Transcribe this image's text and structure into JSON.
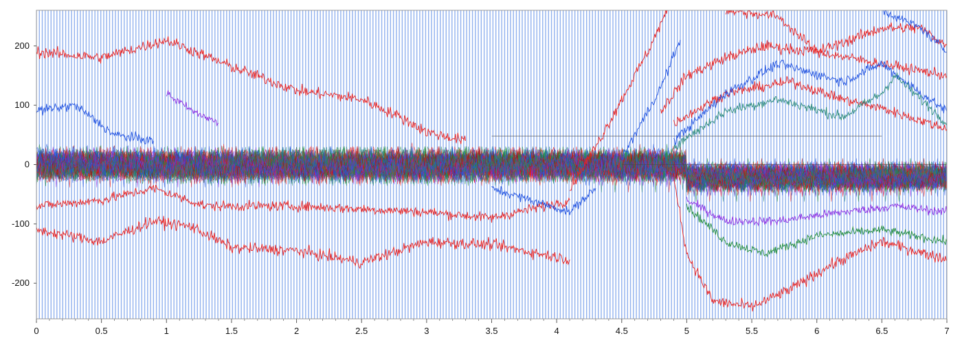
{
  "chart_data": {
    "type": "line",
    "title": "",
    "xlabel": "",
    "ylabel": "",
    "xlim": [
      0,
      7
    ],
    "ylim": [
      -260,
      260
    ],
    "x_ticks": [
      0,
      0.5,
      1,
      1.5,
      2,
      2.5,
      3,
      3.5,
      4,
      4.5,
      5,
      5.5,
      6,
      6.5,
      7
    ],
    "x_tick_labels": [
      "0",
      "0.5",
      "1",
      "1.5",
      "2",
      "2.5",
      "3",
      "3.5",
      "4",
      "4.5",
      "5",
      "5.5",
      "6",
      "6.5",
      "7"
    ],
    "y_ticks": [
      -200,
      -100,
      0,
      100,
      200
    ],
    "y_tick_labels": [
      "-200",
      "-100",
      "0",
      "100",
      "200"
    ],
    "background_stripes": {
      "color": "#8fb0ee",
      "spacing_x": 0.0225
    },
    "colors": {
      "red": "#e82020",
      "blue": "#1d4fe0",
      "green": "#1e8a3a",
      "purple": "#8a2be2",
      "teal": "#2a8a7a",
      "dark_red": "#9e1010"
    },
    "noise_band": {
      "center": 0,
      "half_width": 45,
      "note_free": true
    },
    "series": [
      {
        "color": "red",
        "noise": 9,
        "points": [
          [
            0,
            190
          ],
          [
            0.5,
            180
          ],
          [
            1,
            210
          ],
          [
            1.5,
            165
          ],
          [
            2,
            125
          ],
          [
            2.5,
            110
          ],
          [
            2.8,
            80
          ],
          [
            3,
            55
          ],
          [
            3.3,
            40
          ]
        ]
      },
      {
        "color": "red",
        "noise": 9,
        "points": [
          [
            0,
            -110
          ],
          [
            0.5,
            -130
          ],
          [
            0.9,
            -95
          ],
          [
            1.2,
            -105
          ],
          [
            1.5,
            -140
          ],
          [
            2,
            -145
          ],
          [
            2.5,
            -165
          ],
          [
            3,
            -130
          ],
          [
            3.5,
            -135
          ],
          [
            4.1,
            -160
          ]
        ]
      },
      {
        "color": "red",
        "noise": 8,
        "points": [
          [
            0,
            -70
          ],
          [
            0.5,
            -60
          ],
          [
            0.9,
            -40
          ],
          [
            1.3,
            -70
          ],
          [
            2,
            -70
          ],
          [
            2.5,
            -75
          ],
          [
            3,
            -80
          ],
          [
            3.5,
            -90
          ],
          [
            4.1,
            -60
          ]
        ]
      },
      {
        "color": "red",
        "noise": 9,
        "points": [
          [
            4.1,
            -40
          ],
          [
            4.3,
            30
          ],
          [
            4.5,
            110
          ],
          [
            4.7,
            190
          ],
          [
            4.85,
            260
          ]
        ]
      },
      {
        "color": "red",
        "noise": 9,
        "points": [
          [
            4.9,
            -20
          ],
          [
            5,
            -150
          ],
          [
            5.2,
            -230
          ],
          [
            5.5,
            -240
          ],
          [
            5.8,
            -210
          ],
          [
            6.1,
            -170
          ],
          [
            6.5,
            -130
          ],
          [
            7,
            -160
          ]
        ]
      },
      {
        "color": "red",
        "noise": 9,
        "points": [
          [
            4.8,
            90
          ],
          [
            5,
            150
          ],
          [
            5.3,
            180
          ],
          [
            5.6,
            200
          ],
          [
            6,
            190
          ],
          [
            6.5,
            230
          ],
          [
            6.8,
            230
          ],
          [
            7,
            200
          ]
        ]
      },
      {
        "color": "red",
        "noise": 8,
        "points": [
          [
            4.9,
            70
          ],
          [
            5.3,
            120
          ],
          [
            5.8,
            140
          ],
          [
            6.2,
            110
          ],
          [
            6.5,
            95
          ],
          [
            7,
            60
          ]
        ]
      },
      {
        "color": "red",
        "noise": 8,
        "points": [
          [
            5.3,
            260
          ],
          [
            5.7,
            250
          ],
          [
            6,
            190
          ],
          [
            6.5,
            170
          ],
          [
            7,
            150
          ]
        ]
      },
      {
        "color": "blue",
        "noise": 8,
        "points": [
          [
            0,
            90
          ],
          [
            0.3,
            100
          ],
          [
            0.6,
            50
          ],
          [
            0.9,
            40
          ]
        ]
      },
      {
        "color": "blue",
        "noise": 8,
        "points": [
          [
            4.5,
            10
          ],
          [
            4.8,
            130
          ],
          [
            4.95,
            210
          ]
        ]
      },
      {
        "color": "blue",
        "noise": 8,
        "points": [
          [
            4.9,
            40
          ],
          [
            5.3,
            120
          ],
          [
            5.7,
            170
          ],
          [
            6.2,
            140
          ],
          [
            6.5,
            170
          ],
          [
            6.8,
            120
          ],
          [
            7,
            90
          ]
        ]
      },
      {
        "color": "blue",
        "noise": 7,
        "points": [
          [
            3.5,
            -40
          ],
          [
            3.8,
            -60
          ],
          [
            4.1,
            -80
          ],
          [
            4.3,
            -40
          ]
        ]
      },
      {
        "color": "blue",
        "noise": 7,
        "points": [
          [
            6.5,
            260
          ],
          [
            6.8,
            230
          ],
          [
            7,
            190
          ]
        ]
      },
      {
        "color": "teal",
        "noise": 8,
        "points": [
          [
            4.9,
            30
          ],
          [
            5.3,
            90
          ],
          [
            5.7,
            110
          ],
          [
            6.2,
            80
          ],
          [
            6.5,
            120
          ],
          [
            6.6,
            150
          ],
          [
            7,
            70
          ]
        ]
      },
      {
        "color": "green",
        "noise": 7,
        "points": [
          [
            5,
            -70
          ],
          [
            5.3,
            -130
          ],
          [
            5.6,
            -150
          ],
          [
            6,
            -120
          ],
          [
            6.5,
            -110
          ],
          [
            7,
            -130
          ]
        ]
      },
      {
        "color": "purple",
        "noise": 7,
        "points": [
          [
            1,
            120
          ],
          [
            1.2,
            90
          ],
          [
            1.4,
            70
          ]
        ]
      },
      {
        "color": "purple",
        "noise": 7,
        "points": [
          [
            5,
            -60
          ],
          [
            5.3,
            -95
          ],
          [
            5.7,
            -95
          ],
          [
            6.2,
            -80
          ],
          [
            6.6,
            -70
          ],
          [
            7,
            -80
          ]
        ]
      }
    ]
  }
}
